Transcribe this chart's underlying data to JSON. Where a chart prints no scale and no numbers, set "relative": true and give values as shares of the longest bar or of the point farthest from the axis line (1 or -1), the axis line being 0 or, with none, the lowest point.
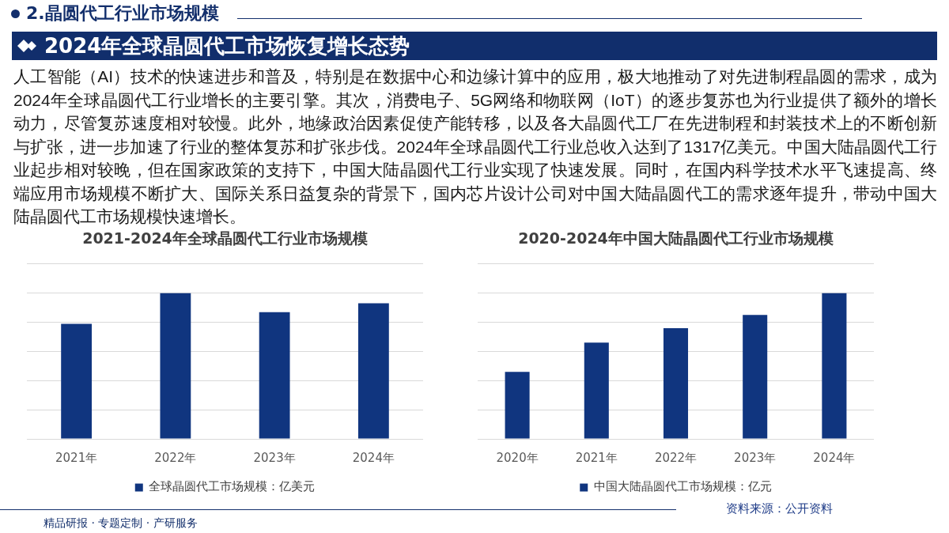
{
  "chart_data": [
    {
      "type": "bar",
      "title": "2021-2024年全球晶圆代工行业市场规模",
      "categories": [
        "2021年",
        "2022年",
        "2023年",
        "2024年"
      ],
      "series": [
        {
          "name": "全球晶圆代工市场规模：亿美元",
          "color": "#10357f",
          "values": [
            0.79,
            1,
            0.87,
            0.93
          ]
        }
      ],
      "relative": true,
      "grid": "y",
      "legend": "bottom",
      "annotations": [
        "2.晶圆代工行业市场规模",
        "2024年全球晶圆代工市场恢复增长态势",
        "人工智能（AI）技术的快速进步和普及，特别是在数据中心和边缘计算中的应用，极大地推动了对先进制程晶圆的需求，成为2024年全球晶圆代工行业增长的主要引擎。其次，消费电子、5G网络和物联网（IoT）的逐步复苏也为行业提供了额外的增长动力，尽管复苏速度相对较慢。此外，地缘政治因素促使产能转移，以及各大晶圆代工厂在先进制程和封装技术上的不断创新与扩张，进一步加速了行业的整体复苏和扩张步伐。2024年全球晶圆代工行业总收入达到了1317亿美元。中国大陆晶圆代工行业起步相对较晚，但在国家政策的支持下，中国大陆晶圆代工行业实现了快速发展。同时，在国内科学技术水平飞速提高、终端应用市场规模不断扩大、国际关系日益复杂的背景下，国内芯片设计公司对中国大陆晶圆代工的需求逐年提升，带动中国大陆晶圆代工市场规模快速增长。",
        "精品研报 · 专题定制 · 产研服务"
      ]
    },
    {
      "type": "bar",
      "title": "2020-2024年中国大陆晶圆代工行业市场规模",
      "categories": [
        "2020年",
        "2021年",
        "2022年",
        "2023年",
        "2024年"
      ],
      "series": [
        {
          "name": "中国大陆晶圆代工市场规模：亿元",
          "color": "#10357f",
          "values": [
            0.46,
            0.66,
            0.76,
            0.85,
            1
          ]
        }
      ],
      "relative": true,
      "grid": "y",
      "legend": "bottom",
      "annotations": [
        "资料来源：公开资料"
      ]
    }
  ]
}
